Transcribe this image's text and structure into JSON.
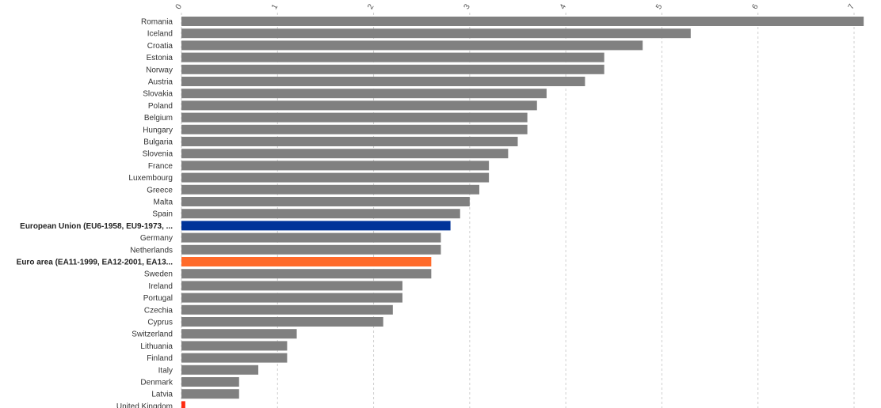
{
  "chart_data": {
    "type": "bar",
    "orientation": "horizontal",
    "title": "",
    "xlabel": "",
    "ylabel": "",
    "xlim": [
      0,
      7
    ],
    "x_ticks": [
      "0",
      "1",
      "2",
      "3",
      "4",
      "5",
      "6",
      "7"
    ],
    "grid": true,
    "legend": "none",
    "colors": {
      "default": "#808080",
      "eu": "#003399",
      "euro_area": "#ff6a2a",
      "highlight_small": "#ff2a10"
    },
    "categories": [
      "Romania",
      "Iceland",
      "Croatia",
      "Estonia",
      "Norway",
      "Austria",
      "Slovakia",
      "Poland",
      "Belgium",
      "Hungary",
      "Bulgaria",
      "Slovenia",
      "France",
      "Luxembourg",
      "Greece",
      "Malta",
      "Spain",
      "European Union (EU6-1958, EU9-1973, ...",
      "Germany",
      "Netherlands",
      "Euro area (EA11-1999, EA12-2001, EA13...",
      "Sweden",
      "Ireland",
      "Portugal",
      "Czechia",
      "Cyprus",
      "Switzerland",
      "Lithuania",
      "Finland",
      "Italy",
      "Denmark",
      "Latvia",
      "United Kingdom"
    ],
    "values": [
      7.1,
      5.3,
      4.8,
      4.4,
      4.4,
      4.2,
      3.8,
      3.7,
      3.6,
      3.6,
      3.5,
      3.4,
      3.2,
      3.2,
      3.1,
      3.0,
      2.9,
      2.8,
      2.7,
      2.7,
      2.6,
      2.6,
      2.3,
      2.3,
      2.2,
      2.1,
      1.2,
      1.1,
      1.1,
      0.8,
      0.6,
      0.6,
      0.04
    ],
    "bar_color_keys": [
      "default",
      "default",
      "default",
      "default",
      "default",
      "default",
      "default",
      "default",
      "default",
      "default",
      "default",
      "default",
      "default",
      "default",
      "default",
      "default",
      "default",
      "eu",
      "default",
      "default",
      "euro_area",
      "default",
      "default",
      "default",
      "default",
      "default",
      "default",
      "default",
      "default",
      "default",
      "default",
      "default",
      "highlight_small"
    ],
    "bold_labels": [
      "European Union (EU6-1958, EU9-1973, ...",
      "Euro area (EA11-1999, EA12-2001, EA13..."
    ]
  }
}
